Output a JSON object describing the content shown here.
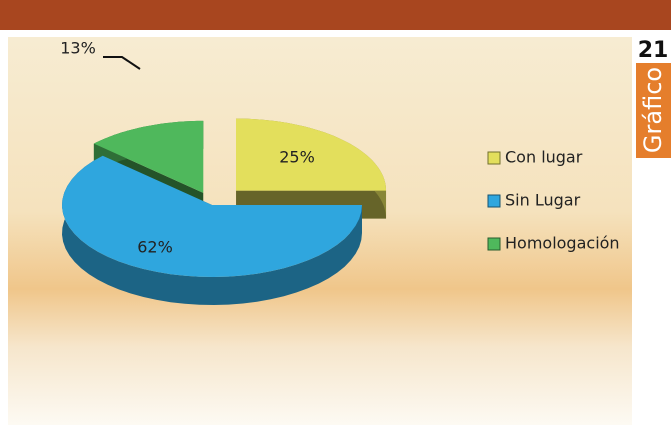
{
  "badge": {
    "number": "21",
    "label": "Gráfico"
  },
  "chart_data": {
    "type": "pie",
    "categories": [
      "Con lugar",
      "Sin Lugar",
      "Homologación"
    ],
    "values": [
      25,
      62,
      13
    ],
    "value_labels": [
      "25%",
      "62%",
      "13%"
    ],
    "colors": [
      "#e3df5c",
      "#2fa6de",
      "#4fb85c"
    ],
    "legend": "right"
  }
}
